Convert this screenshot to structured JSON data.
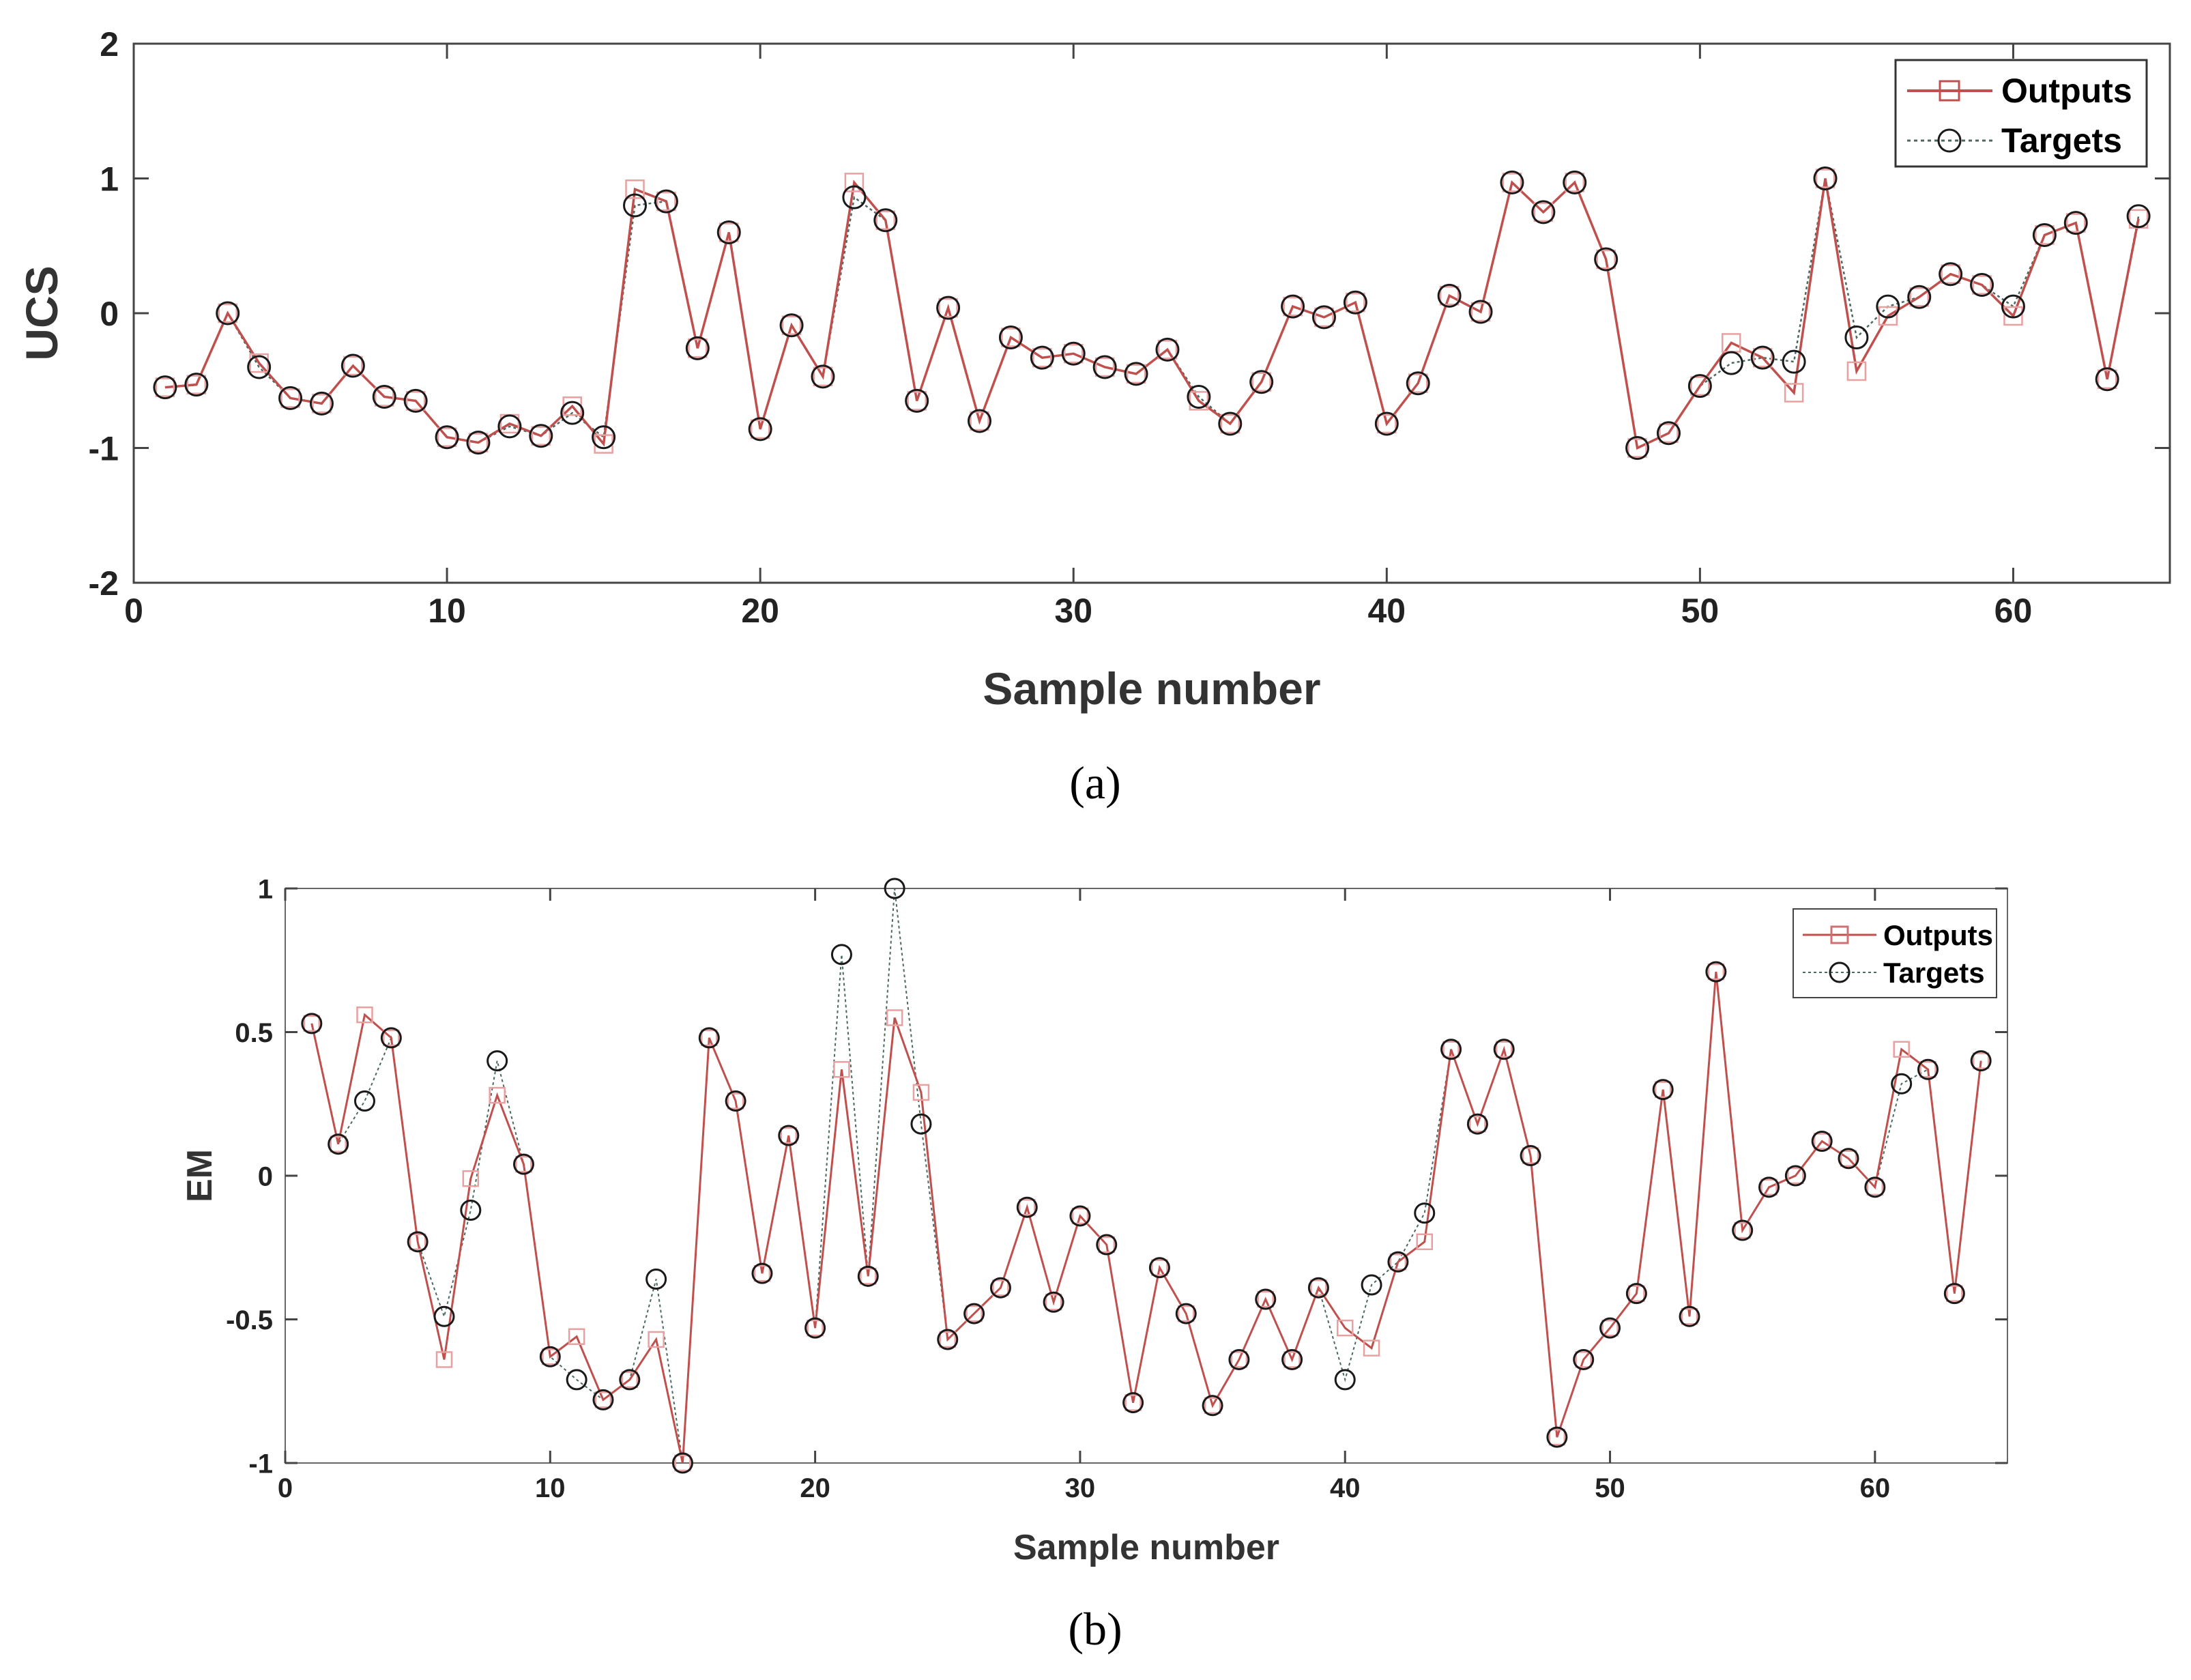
{
  "chart_data": [
    {
      "type": "line",
      "panel": "a",
      "caption": "(a)",
      "xlabel": "Sample number",
      "ylabel": "UCS",
      "xlim": [
        0,
        65
      ],
      "ylim": [
        -2,
        2
      ],
      "xticks": [
        0,
        10,
        20,
        30,
        40,
        50,
        60
      ],
      "yticks": [
        -2,
        -1,
        0,
        1,
        2
      ],
      "legend_position": "top-right",
      "x": [
        1,
        2,
        3,
        4,
        5,
        6,
        7,
        8,
        9,
        10,
        11,
        12,
        13,
        14,
        15,
        16,
        17,
        18,
        19,
        20,
        21,
        22,
        23,
        24,
        25,
        26,
        27,
        28,
        29,
        30,
        31,
        32,
        33,
        34,
        35,
        36,
        37,
        38,
        39,
        40,
        41,
        42,
        43,
        44,
        45,
        46,
        47,
        48,
        49,
        50,
        51,
        52,
        53,
        54,
        55,
        56,
        57,
        58,
        59,
        60,
        61,
        62,
        63,
        64
      ],
      "series": [
        {
          "name": "Outputs",
          "marker": "square",
          "color": "#c0504d",
          "values": [
            -0.55,
            -0.53,
            0.0,
            -0.37,
            -0.63,
            -0.67,
            -0.39,
            -0.62,
            -0.65,
            -0.92,
            -0.96,
            -0.82,
            -0.91,
            -0.69,
            -0.97,
            0.92,
            0.83,
            -0.26,
            0.6,
            -0.86,
            -0.09,
            -0.47,
            0.97,
            0.69,
            -0.65,
            0.04,
            -0.8,
            -0.18,
            -0.33,
            -0.3,
            -0.4,
            -0.45,
            -0.27,
            -0.65,
            -0.82,
            -0.51,
            0.05,
            -0.03,
            0.08,
            -0.82,
            -0.52,
            0.13,
            0.01,
            0.97,
            0.75,
            0.97,
            0.4,
            -1.0,
            -0.89,
            -0.54,
            -0.22,
            -0.33,
            -0.59,
            1.0,
            -0.43,
            -0.02,
            0.12,
            0.29,
            0.21,
            -0.02,
            0.58,
            0.67,
            -0.49,
            0.7
          ]
        },
        {
          "name": "Targets",
          "marker": "circle",
          "color": "#4a6a60",
          "values": [
            -0.55,
            -0.53,
            0.0,
            -0.4,
            -0.63,
            -0.67,
            -0.39,
            -0.62,
            -0.65,
            -0.92,
            -0.96,
            -0.84,
            -0.91,
            -0.74,
            -0.92,
            0.8,
            0.83,
            -0.26,
            0.6,
            -0.86,
            -0.09,
            -0.47,
            0.86,
            0.69,
            -0.65,
            0.04,
            -0.8,
            -0.18,
            -0.33,
            -0.3,
            -0.4,
            -0.45,
            -0.27,
            -0.62,
            -0.82,
            -0.51,
            0.05,
            -0.03,
            0.08,
            -0.82,
            -0.52,
            0.13,
            0.01,
            0.97,
            0.75,
            0.97,
            0.4,
            -1.0,
            -0.89,
            -0.54,
            -0.37,
            -0.33,
            -0.36,
            1.0,
            -0.18,
            0.05,
            0.12,
            0.29,
            0.21,
            0.05,
            0.58,
            0.67,
            -0.49,
            0.72
          ]
        }
      ]
    },
    {
      "type": "line",
      "panel": "b",
      "caption": "(b)",
      "xlabel": "Sample number",
      "ylabel": "EM",
      "xlim": [
        0,
        65
      ],
      "ylim": [
        -1,
        1
      ],
      "xticks": [
        0,
        10,
        20,
        30,
        40,
        50,
        60
      ],
      "yticks": [
        -1,
        -0.5,
        0,
        0.5,
        1
      ],
      "legend_position": "top-right",
      "x": [
        1,
        2,
        3,
        4,
        5,
        6,
        7,
        8,
        9,
        10,
        11,
        12,
        13,
        14,
        15,
        16,
        17,
        18,
        19,
        20,
        21,
        22,
        23,
        24,
        25,
        26,
        27,
        28,
        29,
        30,
        31,
        32,
        33,
        34,
        35,
        36,
        37,
        38,
        39,
        40,
        41,
        42,
        43,
        44,
        45,
        46,
        47,
        48,
        49,
        50,
        51,
        52,
        53,
        54,
        55,
        56,
        57,
        58,
        59,
        60,
        61,
        62,
        63,
        64
      ],
      "series": [
        {
          "name": "Outputs",
          "marker": "square",
          "color": "#c0504d",
          "values": [
            0.53,
            0.11,
            0.56,
            0.48,
            -0.23,
            -0.64,
            -0.01,
            0.28,
            0.04,
            -0.63,
            -0.56,
            -0.78,
            -0.71,
            -0.57,
            -1.0,
            0.48,
            0.26,
            -0.34,
            0.14,
            -0.53,
            0.37,
            -0.35,
            0.55,
            0.29,
            -0.57,
            -0.48,
            -0.39,
            -0.11,
            -0.44,
            -0.14,
            -0.24,
            -0.79,
            -0.32,
            -0.48,
            -0.8,
            -0.64,
            -0.43,
            -0.64,
            -0.39,
            -0.53,
            -0.6,
            -0.3,
            -0.23,
            0.44,
            0.18,
            0.44,
            0.07,
            -0.91,
            -0.64,
            -0.53,
            -0.41,
            0.3,
            -0.49,
            0.71,
            -0.19,
            -0.04,
            0.0,
            0.12,
            0.06,
            -0.04,
            0.44,
            0.37,
            -0.41,
            0.4
          ]
        },
        {
          "name": "Targets",
          "marker": "circle",
          "color": "#4a6a60",
          "values": [
            0.53,
            0.11,
            0.26,
            0.48,
            -0.23,
            -0.49,
            -0.12,
            0.4,
            0.04,
            -0.63,
            -0.71,
            -0.78,
            -0.71,
            -0.36,
            -1.0,
            0.48,
            0.26,
            -0.34,
            0.14,
            -0.53,
            0.77,
            -0.35,
            1.0,
            0.18,
            -0.57,
            -0.48,
            -0.39,
            -0.11,
            -0.44,
            -0.14,
            -0.24,
            -0.79,
            -0.32,
            -0.48,
            -0.8,
            -0.64,
            -0.43,
            -0.64,
            -0.39,
            -0.71,
            -0.38,
            -0.3,
            -0.13,
            0.44,
            0.18,
            0.44,
            0.07,
            -0.91,
            -0.64,
            -0.53,
            -0.41,
            0.3,
            -0.49,
            0.71,
            -0.19,
            -0.04,
            0.0,
            0.12,
            0.06,
            -0.04,
            0.32,
            0.37,
            -0.41,
            0.4
          ]
        }
      ]
    }
  ]
}
